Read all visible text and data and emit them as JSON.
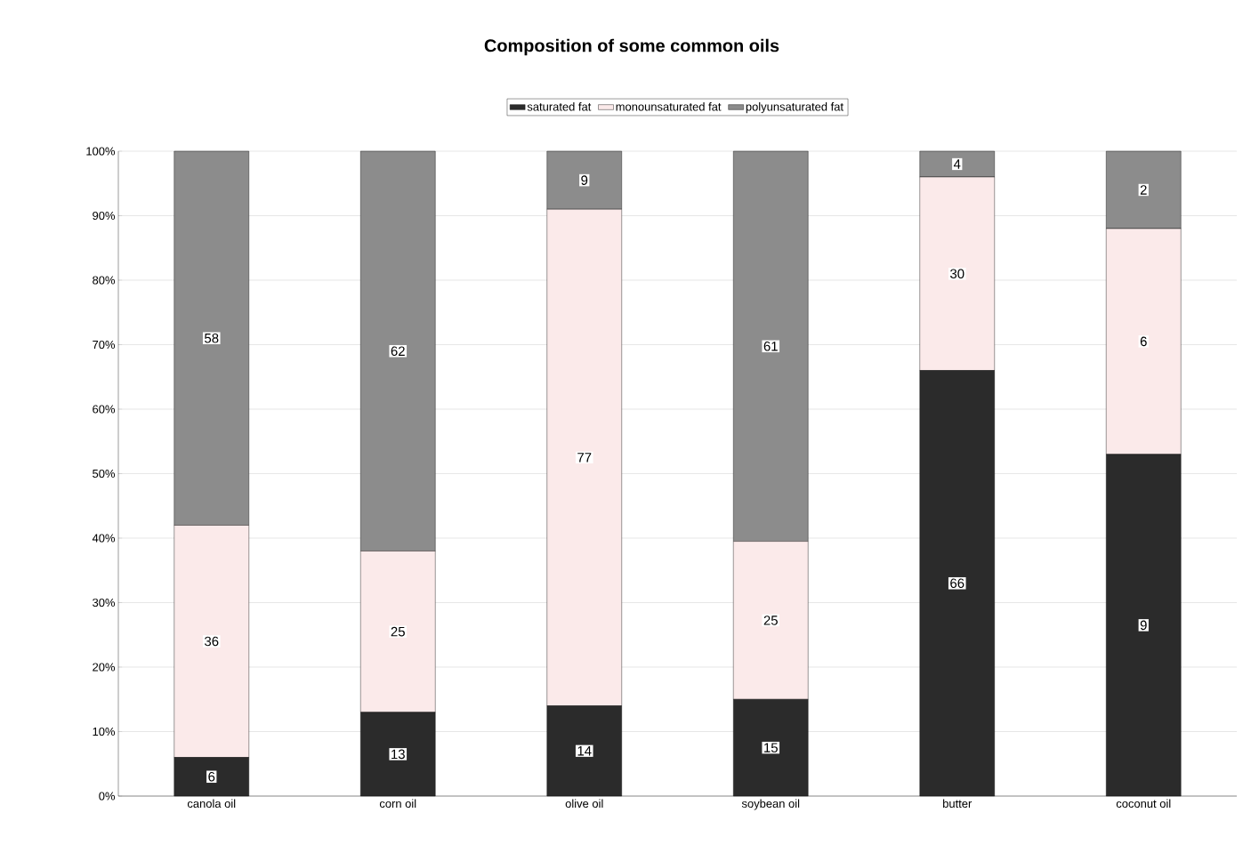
{
  "chart_data": {
    "type": "bar",
    "stacked": true,
    "title": "Composition of some common oils",
    "categories": [
      "canola oil",
      "corn oil",
      "olive oil",
      "soybean oil",
      "butter",
      "coconut oil"
    ],
    "series": [
      {
        "name": "saturated fat",
        "color": "#2b2b2b",
        "values": [
          6,
          13,
          14,
          15,
          66,
          53
        ],
        "value_labels": [
          "6",
          "13",
          "14",
          "15",
          "66",
          null
        ]
      },
      {
        "name": "monounsaturated fat",
        "color": "#fbeaea",
        "values": [
          36,
          25,
          77,
          24.5,
          30,
          35
        ],
        "value_labels": [
          "36",
          "25",
          "77",
          "25",
          "30",
          null
        ]
      },
      {
        "name": "polyunsaturated fat",
        "color": "#8c8c8c",
        "values": [
          58,
          62,
          9,
          60.5,
          4,
          12
        ],
        "value_labels": [
          "58",
          "62",
          "9",
          "61",
          "4",
          null
        ]
      }
    ],
    "annotations": [
      {
        "text": "9",
        "x": "coconut oil",
        "y": 26.5
      },
      {
        "text": "6",
        "x": "coconut oil",
        "y": 70.5
      },
      {
        "text": "2",
        "x": "coconut oil",
        "y": 94
      }
    ],
    "ylim": [
      0,
      100
    ],
    "yticks": [
      {
        "value": 0,
        "label": "0%"
      },
      {
        "value": 10,
        "label": "10%"
      },
      {
        "value": 20,
        "label": "20%"
      },
      {
        "value": 30,
        "label": "30%"
      },
      {
        "value": 40,
        "label": "40%"
      },
      {
        "value": 50,
        "label": "50%"
      },
      {
        "value": 60,
        "label": "60%"
      },
      {
        "value": 70,
        "label": "70%"
      },
      {
        "value": 80,
        "label": "80%"
      },
      {
        "value": 90,
        "label": "90%"
      },
      {
        "value": 100,
        "label": "100%"
      }
    ],
    "grid": "y",
    "legend": "top"
  }
}
